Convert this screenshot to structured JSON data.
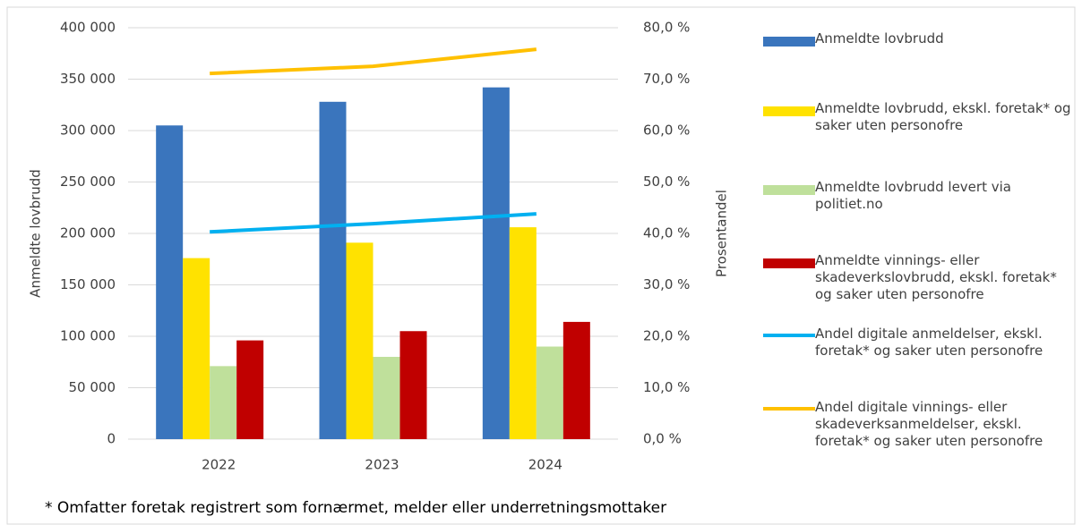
{
  "chart_data": {
    "type": "bar",
    "categories": [
      "2022",
      "2023",
      "2024"
    ],
    "y_label": "Anmeldte lovbrudd",
    "y2_label": "Prosentandel",
    "footnote": "* Omfatter foretak registrert som fornærmet, melder eller underretningsmottaker",
    "series": [
      {
        "name": "Anmeldte lovbrudd",
        "type": "bar",
        "color": "#3a75bd",
        "values": [
          305000,
          328000,
          342000
        ]
      },
      {
        "name": "Anmeldte lovbrudd, ekskl. foretak* og saker uten personofre",
        "type": "bar",
        "color": "#ffe200",
        "values": [
          176000,
          191000,
          206000
        ]
      },
      {
        "name": "Anmeldte lovbrudd levert via politiet.no",
        "type": "bar",
        "color": "#bfe09b",
        "values": [
          71000,
          80000,
          90000
        ]
      },
      {
        "name": "Anmeldte vinnings- eller skadeverkslovbrudd, ekskl. foretak* og saker uten personofre",
        "type": "bar",
        "color": "#c00000",
        "values": [
          96000,
          105000,
          114000
        ]
      },
      {
        "name": "Andel digitale anmeldelser, ekskl. foretak* og saker uten personofre",
        "type": "line",
        "axis": "y2",
        "color": "#00b0f0",
        "values": [
          40.3,
          41.9,
          43.8
        ]
      },
      {
        "name": "Andel digitale vinnings- eller skadeverksanmeldelser, ekskl. foretak* og saker uten personofre",
        "type": "line",
        "axis": "y2",
        "color": "#ffc000",
        "values": [
          71.1,
          72.5,
          75.8
        ]
      }
    ],
    "ylim": [
      0,
      400000
    ],
    "yticks": [
      0,
      {
        "value": 50000,
        "label": "50 000"
      },
      {
        "value": 100000,
        "label": "100 000"
      },
      {
        "value": 150000,
        "label": "150 000"
      },
      {
        "value": 200000,
        "label": "200 000"
      },
      {
        "value": 250000,
        "label": "250 000"
      },
      {
        "value": 300000,
        "label": "300 000"
      },
      {
        "value": 350000,
        "label": "350 000"
      },
      {
        "value": 400000,
        "label": "400 000"
      }
    ],
    "y2lim": [
      0,
      80
    ],
    "y2ticks": [
      {
        "value": 0,
        "label": "0,0 %"
      },
      {
        "value": 10,
        "label": "10,0 %"
      },
      {
        "value": 20,
        "label": "20,0 %"
      },
      {
        "value": 30,
        "label": "30,0 %"
      },
      {
        "value": 40,
        "label": "40,0 %"
      },
      {
        "value": 50,
        "label": "50,0 %"
      },
      {
        "value": 60,
        "label": "60,0 %"
      },
      {
        "value": 70,
        "label": "70,0 %"
      },
      {
        "value": 80,
        "label": "80,0 %"
      }
    ],
    "grid": true,
    "legend": "right"
  }
}
